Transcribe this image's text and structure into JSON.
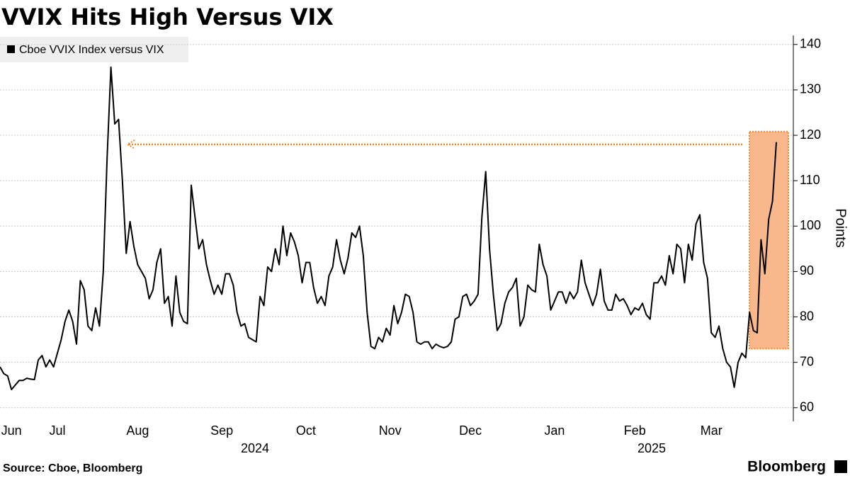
{
  "chart_data": {
    "type": "line",
    "title": "VVIX Hits High Versus VIX",
    "y_label": "Points",
    "source": "Source: Cboe, Bloomberg",
    "brand": "Bloomberg",
    "year_labels": [
      "2024",
      "2025"
    ],
    "categories": [
      null,
      null,
      null,
      "Jun",
      null,
      null,
      null,
      null,
      null,
      null,
      null,
      null,
      null,
      null,
      null,
      "Jul",
      null,
      null,
      null,
      null,
      null,
      null,
      null,
      null,
      null,
      null,
      null,
      null,
      null,
      null,
      null,
      null,
      null,
      null,
      null,
      null,
      "Aug",
      null,
      null,
      null,
      null,
      null,
      null,
      null,
      null,
      null,
      null,
      null,
      null,
      null,
      null,
      null,
      null,
      null,
      null,
      null,
      null,
      null,
      "Sep",
      null,
      null,
      null,
      null,
      null,
      null,
      null,
      null,
      null,
      null,
      null,
      null,
      null,
      null,
      null,
      null,
      null,
      null,
      null,
      null,
      null,
      "Oct",
      null,
      null,
      null,
      null,
      null,
      null,
      null,
      null,
      null,
      null,
      null,
      null,
      null,
      null,
      null,
      null,
      null,
      null,
      null,
      null,
      null,
      "Nov",
      null,
      null,
      null,
      null,
      null,
      null,
      null,
      null,
      null,
      null,
      null,
      null,
      null,
      null,
      null,
      null,
      null,
      null,
      null,
      null,
      "Dec",
      null,
      null,
      null,
      null,
      null,
      null,
      null,
      null,
      null,
      null,
      null,
      null,
      null,
      null,
      null,
      null,
      null,
      null,
      null,
      null,
      null,
      "Jan",
      null,
      null,
      null,
      null,
      null,
      null,
      null,
      null,
      null,
      null,
      null,
      null,
      null,
      null,
      null,
      null,
      null,
      null,
      null,
      null,
      "Feb",
      null,
      null,
      null,
      null,
      null,
      null,
      null,
      null,
      null,
      null,
      null,
      null,
      null,
      null,
      null,
      null,
      null,
      null,
      null,
      "Mar",
      null,
      null,
      null,
      null,
      null,
      null,
      null,
      null,
      null,
      null,
      null,
      null,
      null,
      null,
      null,
      null,
      null
    ],
    "series": [
      {
        "name": "Cboe VVIX Index versus VIX",
        "color": "#000000",
        "values": [
          69,
          67.5,
          67,
          64,
          65,
          66,
          66,
          66.5,
          66.3,
          66.2,
          70.5,
          71.5,
          69,
          70.5,
          69,
          72,
          75,
          79,
          81.5,
          79,
          74,
          88,
          86,
          78,
          77,
          82,
          78,
          90,
          115,
          135,
          122.5,
          123.5,
          110,
          94,
          101,
          95.5,
          91.5,
          90,
          88.5,
          84,
          86,
          92,
          95,
          83,
          84.5,
          78,
          89,
          81,
          79,
          78.5,
          109,
          102,
          95,
          97,
          91.5,
          88,
          85,
          87,
          85,
          89.5,
          89.5,
          87,
          81,
          78,
          78.5,
          75.5,
          75,
          74.5,
          84.5,
          82.5,
          91,
          90,
          95,
          91.5,
          100,
          93.5,
          98.5,
          96.5,
          93.5,
          87.5,
          92,
          92,
          86.5,
          83,
          84.5,
          82.5,
          89,
          91,
          97,
          92.5,
          89.5,
          93,
          98.5,
          97.5,
          100,
          93.5,
          81,
          73.5,
          73,
          75.5,
          74.5,
          77.5,
          76,
          82.5,
          78.5,
          81,
          85,
          84.5,
          81,
          74.5,
          74,
          74.5,
          74.5,
          73,
          74,
          73.5,
          73.2,
          73.5,
          74.5,
          79.5,
          80,
          84.5,
          85,
          82.5,
          83.5,
          85,
          102,
          112,
          95,
          85,
          77,
          78.5,
          83,
          85.5,
          86.5,
          88.5,
          78,
          80,
          87,
          86,
          85.5,
          96,
          91.5,
          89,
          81.5,
          83.5,
          85.5,
          85.5,
          83,
          85.5,
          84,
          85.5,
          92.5,
          87.5,
          85,
          82.5,
          85,
          90.5,
          83.5,
          81.5,
          81.5,
          85,
          83.5,
          84,
          82.5,
          80.5,
          82,
          81.5,
          83,
          80.5,
          79.5,
          87.5,
          87.5,
          89,
          87,
          93.5,
          89.5,
          96,
          95,
          87.5,
          96,
          92.5,
          100.5,
          102.5,
          92,
          88.5,
          76.5,
          75.5,
          78,
          73,
          70,
          69,
          64.5,
          70,
          72,
          71,
          81,
          77,
          76.5,
          97,
          89.5,
          101.5,
          105.5,
          118.5
        ]
      }
    ],
    "ylim": [
      57,
      142
    ],
    "yticks": [
      60,
      70,
      80,
      90,
      100,
      110,
      120,
      130,
      140
    ],
    "grid": true,
    "legend": "top-left",
    "highlight": {
      "ylim": [
        73,
        120.8
      ],
      "color": "#f9b88c"
    },
    "arrow": {
      "y": 118,
      "color": "#f08a24"
    }
  }
}
